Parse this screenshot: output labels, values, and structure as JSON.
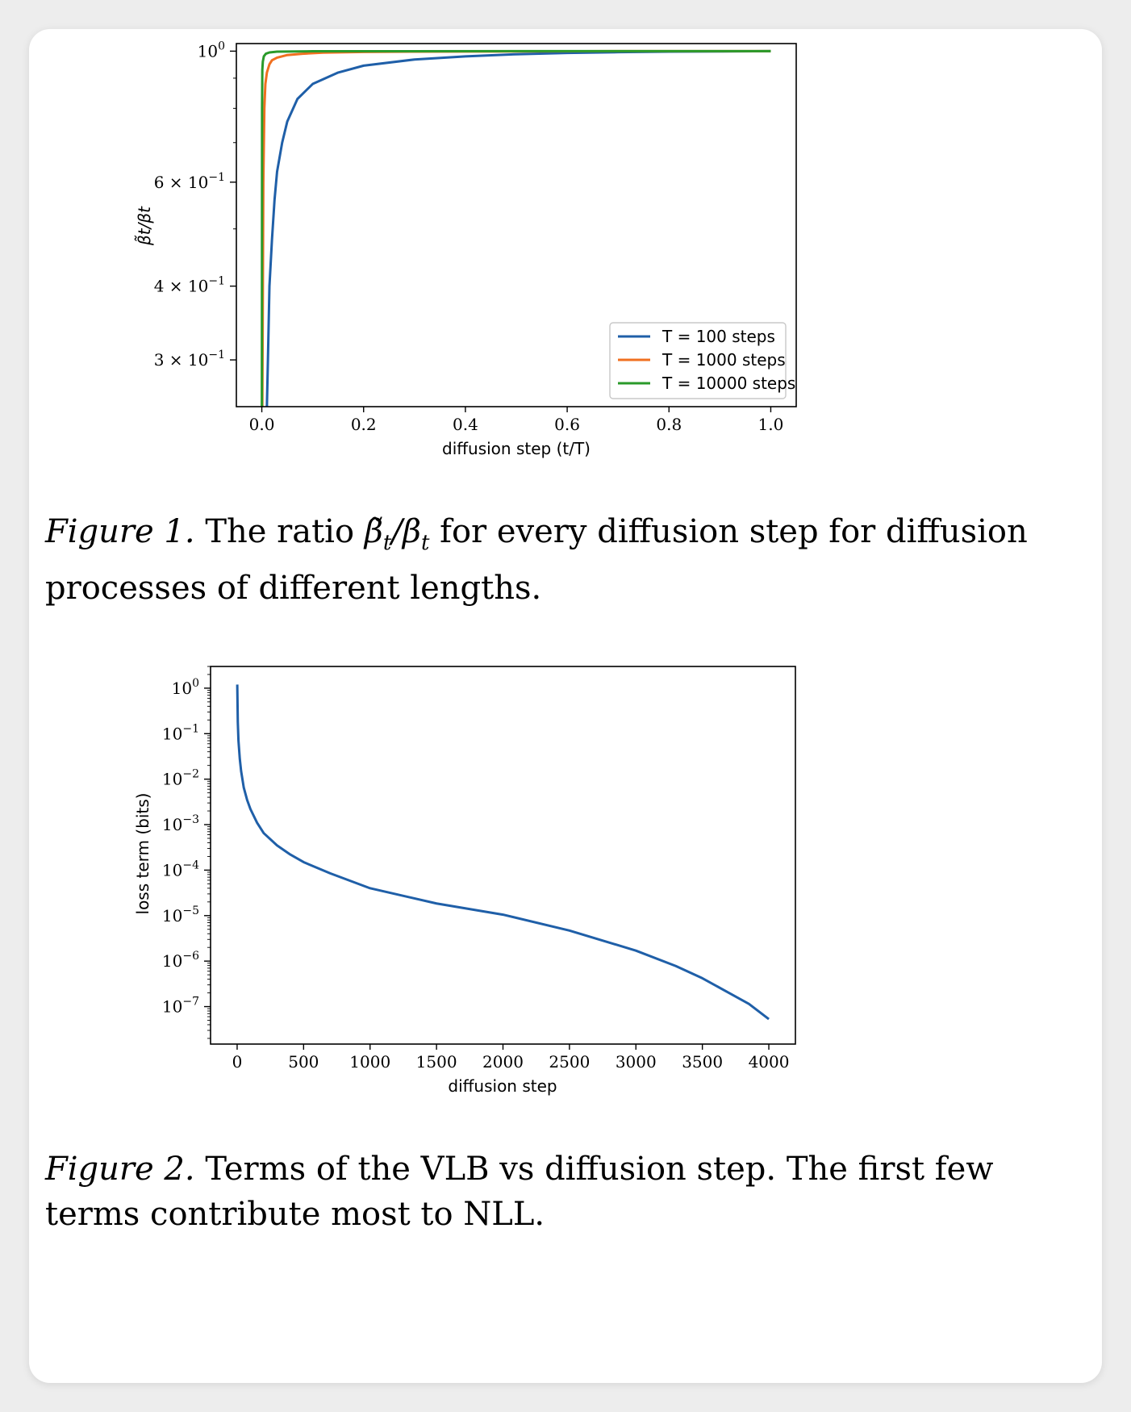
{
  "chart_data": [
    {
      "type": "line",
      "xlabel": "diffusion step (t/T)",
      "ylabel": "β̃t/βt",
      "yscale": "log",
      "xlim": [
        -0.05,
        1.05
      ],
      "ylim": [
        0.25,
        1.03
      ],
      "x_ticks": [
        {
          "value": 0.0,
          "label": "0.0"
        },
        {
          "value": 0.2,
          "label": "0.2"
        },
        {
          "value": 0.4,
          "label": "0.4"
        },
        {
          "value": 0.6,
          "label": "0.6"
        },
        {
          "value": 0.8,
          "label": "0.8"
        },
        {
          "value": 1.0,
          "label": "1.0"
        }
      ],
      "y_ticks": [
        {
          "value": 1.0,
          "base": "10",
          "exp": "0"
        },
        {
          "value": 0.6,
          "base": "6 × 10",
          "exp": "−1"
        },
        {
          "value": 0.4,
          "base": "4 × 10",
          "exp": "−1"
        },
        {
          "value": 0.3,
          "base": "3 × 10",
          "exp": "−1"
        }
      ],
      "y_minor_ticks": [
        0.5,
        0.7,
        0.8,
        0.9
      ],
      "grid": false,
      "legend_position": "lower-right",
      "series": [
        {
          "name": "T = 100 steps",
          "color": "#1f5fa8",
          "x": [
            0.01,
            0.012,
            0.015,
            0.02,
            0.025,
            0.03,
            0.04,
            0.05,
            0.07,
            0.1,
            0.15,
            0.2,
            0.3,
            0.4,
            0.5,
            0.6,
            0.7,
            0.8,
            0.9,
            1.0
          ],
          "y": [
            0.25,
            0.3,
            0.4,
            0.48,
            0.56,
            0.625,
            0.7,
            0.76,
            0.83,
            0.88,
            0.92,
            0.945,
            0.968,
            0.98,
            0.988,
            0.993,
            0.996,
            0.998,
            0.999,
            1.0
          ]
        },
        {
          "name": "T = 1000 steps",
          "color": "#f07020",
          "x": [
            0.001,
            0.003,
            0.005,
            0.007,
            0.01,
            0.015,
            0.02,
            0.03,
            0.05,
            0.08,
            0.12,
            0.2,
            0.3,
            0.5,
            0.7,
            1.0
          ],
          "y": [
            0.25,
            0.6,
            0.8,
            0.88,
            0.92,
            0.95,
            0.965,
            0.975,
            0.985,
            0.99,
            0.994,
            0.997,
            0.998,
            0.999,
            1.0,
            1.0
          ]
        },
        {
          "name": "T = 10000 steps",
          "color": "#2a9a2a",
          "x": [
            0.0001,
            0.0005,
            0.001,
            0.002,
            0.004,
            0.008,
            0.015,
            0.03,
            0.1,
            0.5,
            1.0
          ],
          "y": [
            0.25,
            0.8,
            0.93,
            0.96,
            0.98,
            0.99,
            0.995,
            0.998,
            0.9995,
            1.0,
            1.0
          ]
        }
      ]
    },
    {
      "type": "line",
      "xlabel": "diffusion step",
      "ylabel": "loss term (bits)",
      "yscale": "log",
      "xlim": [
        -200,
        4200
      ],
      "ylim": [
        1.5e-08,
        3
      ],
      "x_ticks": [
        {
          "value": 0,
          "label": "0"
        },
        {
          "value": 500,
          "label": "500"
        },
        {
          "value": 1000,
          "label": "1000"
        },
        {
          "value": 1500,
          "label": "1500"
        },
        {
          "value": 2000,
          "label": "2000"
        },
        {
          "value": 2500,
          "label": "2500"
        },
        {
          "value": 3000,
          "label": "3000"
        },
        {
          "value": 3500,
          "label": "3500"
        },
        {
          "value": 4000,
          "label": "4000"
        }
      ],
      "y_ticks": [
        {
          "value": 1,
          "base": "10",
          "exp": "0"
        },
        {
          "value": 0.1,
          "base": "10",
          "exp": "−1"
        },
        {
          "value": 0.01,
          "base": "10",
          "exp": "−2"
        },
        {
          "value": 0.001,
          "base": "10",
          "exp": "−3"
        },
        {
          "value": 0.0001,
          "base": "10",
          "exp": "−4"
        },
        {
          "value": 1e-05,
          "base": "10",
          "exp": "−5"
        },
        {
          "value": 1e-06,
          "base": "10",
          "exp": "−6"
        },
        {
          "value": 1e-07,
          "base": "10",
          "exp": "−7"
        }
      ],
      "grid": false,
      "series": [
        {
          "color": "#1f5fa8",
          "x": [
            1,
            5,
            10,
            20,
            30,
            50,
            75,
            100,
            150,
            200,
            300,
            400,
            500,
            700,
            1000,
            1500,
            2000,
            2500,
            3000,
            3300,
            3500,
            3700,
            3850,
            4000
          ],
          "y": [
            1.2,
            0.18,
            0.07,
            0.028,
            0.015,
            0.0065,
            0.0035,
            0.0022,
            0.0011,
            0.00065,
            0.00035,
            0.00022,
            0.00015,
            8.5e-05,
            4e-05,
            1.85e-05,
            1.05e-05,
            4.7e-06,
            1.7e-06,
            7.8e-07,
            4.2e-07,
            2e-07,
            1.15e-07,
            5.3e-08
          ]
        }
      ]
    }
  ],
  "captions": [
    {
      "label": "Figure 1.",
      "pre": "The ratio",
      "math_num": "β̃",
      "math_sub1": "t",
      "slash": "/",
      "math_den": "β",
      "math_sub2": "t",
      "post": "for every diffusion step for diffusion processes of different lengths."
    },
    {
      "label": "Figure 2.",
      "text": "Terms of the VLB vs diffusion step. The first few terms contribute most to NLL."
    }
  ]
}
